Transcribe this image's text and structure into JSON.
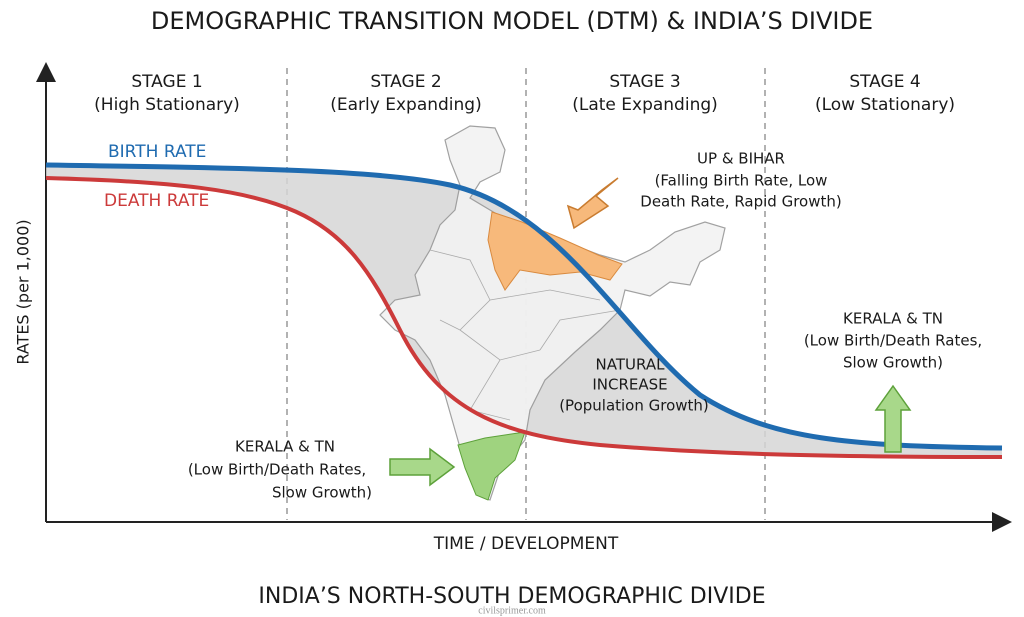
{
  "title": "DEMOGRAPHIC TRANSITION MODEL (DTM) & INDIA’S DIVIDE",
  "stages": [
    {
      "name": "STAGE 1",
      "subtitle": "(High Stationary)"
    },
    {
      "name": "STAGE 2",
      "subtitle": "(Early Expanding)"
    },
    {
      "name": "STAGE 3",
      "subtitle": "(Late Expanding)"
    },
    {
      "name": "STAGE 4",
      "subtitle": "(Low Stationary)"
    }
  ],
  "curves": {
    "birth_rate": "BIRTH RATE",
    "death_rate": "DEATH RATE"
  },
  "y_axis_label": "RATES (per 1,000)",
  "x_axis_label": "TIME / DEVELOPMENT",
  "annotations": {
    "up_bihar": {
      "title": "UP & BIHAR",
      "lines": [
        "(Falling Birth Rate, Low",
        "Death Rate, Rapid Growth)"
      ]
    },
    "natural_increase": {
      "lines": [
        "NATURAL",
        "INCREASE",
        "(Population Growth)"
      ]
    },
    "kerala_tn_map": {
      "title": "KERALA & TN",
      "lines": [
        "(Low Birth/Death Rates,",
        "Slow Growth)"
      ]
    },
    "kerala_tn_stage4": {
      "title": "KERALA & TN",
      "lines": [
        "(Low Birth/Death Rates,",
        "Slow Growth)"
      ]
    }
  },
  "footer": "INDIA’S NORTH-SOUTH DEMOGRAPHIC DIVIDE",
  "watermark": "civilsprimer.com"
}
